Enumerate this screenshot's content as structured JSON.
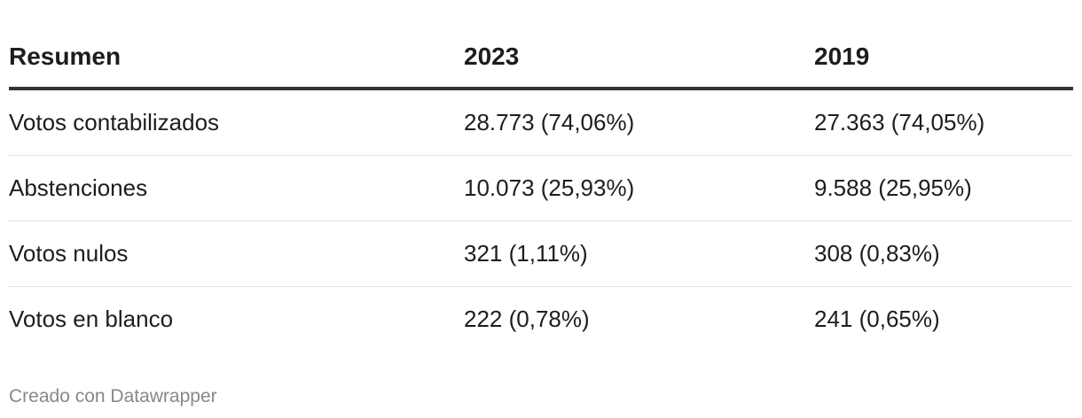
{
  "table": {
    "header": [
      "Resumen",
      "2023",
      "2019"
    ],
    "rows": [
      [
        "Votos contabilizados",
        "28.773 (74,06%)",
        "27.363 (74,05%)"
      ],
      [
        "Abstenciones",
        "10.073 (25,93%)",
        "9.588 (25,95%)"
      ],
      [
        "Votos nulos",
        "321 (1,11%)",
        "308 (0,83%)"
      ],
      [
        "Votos en blanco",
        "222 (0,78%)",
        "241 (0,65%)"
      ]
    ]
  },
  "footer": "Creado con Datawrapper"
}
